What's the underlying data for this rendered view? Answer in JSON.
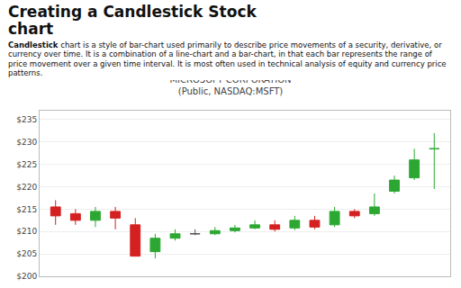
{
  "page_title": [
    "Creating a Candlestick Stock",
    "chart"
  ],
  "description": [
    "Candlestick",
    " chart is a style of bar-chart used primarily to describe price movements of a security, derivative, or currency over time. It is a combination of a line-chart and a bar-chart, in that each bar represents the range of price movement over a given time interval. It is most often used in technical analysis of equity and currency price patterns."
  ],
  "chart_data": {
    "type": "candlestick",
    "title": "MICROSOFT CORPORATION",
    "subtitle": "(Public, NASDAQ:MSFT)",
    "open": [
      215.5,
      214.0,
      212.5,
      214.5,
      211.5,
      205.5,
      208.5,
      209.5,
      209.5,
      210.2,
      210.8,
      211.5,
      210.8,
      212.5,
      211.5,
      214.5,
      214.0,
      219.0,
      222.0,
      228.5
    ],
    "high": [
      217.0,
      215.0,
      215.5,
      215.5,
      213.0,
      209.5,
      210.5,
      210.5,
      211.0,
      211.5,
      212.5,
      212.5,
      213.5,
      213.5,
      215.5,
      215.0,
      218.5,
      222.5,
      228.5,
      232.0
    ],
    "low": [
      211.5,
      211.5,
      211.0,
      210.5,
      207.5,
      204.0,
      208.0,
      209.2,
      209.2,
      209.8,
      210.5,
      210.0,
      210.3,
      210.5,
      211.0,
      213.0,
      213.5,
      218.5,
      221.5,
      219.5
    ],
    "close": [
      213.5,
      212.5,
      214.5,
      213.0,
      204.5,
      208.5,
      209.5,
      209.5,
      210.2,
      210.8,
      211.5,
      210.5,
      212.5,
      211.0,
      214.5,
      213.5,
      215.5,
      221.5,
      226.0,
      228.5
    ],
    "colors": [
      "#d42020",
      "#d42020",
      "#2ca832",
      "#d42020",
      "#d42020",
      "#2ca832",
      "#2ca832",
      "#555555",
      "#2ca832",
      "#2ca832",
      "#2ca832",
      "#d42020",
      "#2ca832",
      "#d42020",
      "#2ca832",
      "#d42020",
      "#2ca832",
      "#2ca832",
      "#2ca832",
      "#2ca832"
    ],
    "ylim": [
      200,
      237
    ],
    "yticks": [
      {
        "value": 200,
        "label": "$200"
      },
      {
        "value": 205,
        "label": "$205"
      },
      {
        "value": 210,
        "label": "$210"
      },
      {
        "value": 215,
        "label": "$215"
      },
      {
        "value": 220,
        "label": "$220"
      },
      {
        "value": 225,
        "label": "$225"
      },
      {
        "value": 230,
        "label": "$230"
      },
      {
        "value": 235,
        "label": "$235"
      }
    ],
    "grid": true,
    "tick_labels": "y"
  }
}
